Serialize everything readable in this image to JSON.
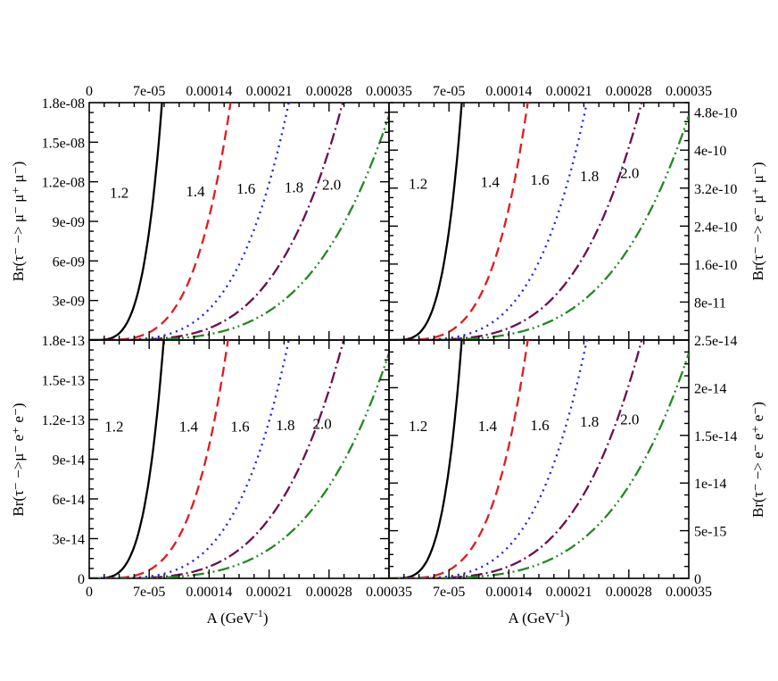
{
  "figure": {
    "xlabel": "A (GeV",
    "xlabel_sup": "-1",
    "xlabel_close": ")"
  },
  "chart_data": [
    {
      "type": "line",
      "panel": "top-left",
      "ylabel": "Br(τ⁻ −> μ⁻ μ⁺ μ⁻)",
      "xlim": [
        0,
        0.00035
      ],
      "ylim": [
        0,
        1.8e-08
      ],
      "x_ticks": [
        "0",
        "7e-05",
        "0.00014",
        "0.00021",
        "0.00028",
        "0.00035"
      ],
      "y_ticks": [
        "3e-09",
        "6e-09",
        "9e-09",
        "1.2e-08",
        "1.5e-08",
        "1.8e-08"
      ],
      "y_tick_values": [
        3e-09,
        6e-09,
        9e-09,
        1.2e-08,
        1.5e-08,
        1.8e-08
      ],
      "k_values": [
        8.5e-05,
        0.000165,
        0.000233,
        0.000296,
        0.000355
      ],
      "series": [
        {
          "name": "1.2",
          "color": "#000000",
          "style": "solid",
          "label_x": 3.5e-05,
          "label_y": 1.12e-08
        },
        {
          "name": "1.4",
          "color": "#e31a1c",
          "style": "dashed",
          "label_x": 0.000124,
          "label_y": 1.13e-08
        },
        {
          "name": "1.6",
          "color": "#1a1aff",
          "style": "dotted",
          "label_x": 0.000183,
          "label_y": 1.15e-08
        },
        {
          "name": "1.8",
          "color": "#6b0f4f",
          "style": "dashdot",
          "label_x": 0.000239,
          "label_y": 1.16e-08
        },
        {
          "name": "2.0",
          "color": "#1f8a1f",
          "style": "dashdotdot",
          "label_x": 0.000283,
          "label_y": 1.18e-08
        }
      ]
    },
    {
      "type": "line",
      "panel": "top-right",
      "ylabel": "Br(τ⁻ −> e⁻ μ⁺ μ⁻)",
      "xlim": [
        0,
        0.00035
      ],
      "ylim": [
        0,
        5e-10
      ],
      "x_ticks": [
        "0",
        "7e-05",
        "0.00014",
        "0.00021",
        "0.00028",
        "0.00035"
      ],
      "y_ticks": [
        "8e-11",
        "1.6e-10",
        "2.4e-10",
        "3.2e-10",
        "4e-10",
        "4.8e-10"
      ],
      "y_tick_values": [
        8e-11,
        1.6e-10,
        2.4e-10,
        3.2e-10,
        4e-10,
        4.8e-10
      ],
      "k_values": [
        8.5e-05,
        0.000162,
        0.000231,
        0.000295,
        0.000355
      ],
      "series": [
        {
          "name": "1.2",
          "color": "#000000",
          "style": "solid",
          "label_x": 3.4e-05,
          "label_y": 3.3e-10
        },
        {
          "name": "1.4",
          "color": "#e31a1c",
          "style": "dashed",
          "label_x": 0.000118,
          "label_y": 3.34e-10
        },
        {
          "name": "1.6",
          "color": "#1a1aff",
          "style": "dotted",
          "label_x": 0.000176,
          "label_y": 3.38e-10
        },
        {
          "name": "1.8",
          "color": "#6b0f4f",
          "style": "dashdot",
          "label_x": 0.000234,
          "label_y": 3.46e-10
        },
        {
          "name": "2.0",
          "color": "#1f8a1f",
          "style": "dashdotdot",
          "label_x": 0.000281,
          "label_y": 3.52e-10
        }
      ]
    },
    {
      "type": "line",
      "panel": "bottom-left",
      "ylabel": "Br(τ⁻ −>μ⁻ e⁺ e⁻)",
      "xlim": [
        0,
        0.00035
      ],
      "ylim": [
        0,
        1.8e-13
      ],
      "x_ticks": [
        "0",
        "7e-05",
        "0.00014",
        "0.00021",
        "0.00028",
        "0.00035"
      ],
      "y_ticks": [
        "0",
        "3e-14",
        "6e-14",
        "9e-14",
        "1.2e-13",
        "1.5e-13",
        "1.8e-13"
      ],
      "y_tick_values": [
        0,
        3e-14,
        6e-14,
        9e-14,
        1.2e-13,
        1.5e-13,
        1.8e-13
      ],
      "k_values": [
        8.7e-05,
        0.000162,
        0.000233,
        0.000297,
        0.000355
      ],
      "series": [
        {
          "name": "1.2",
          "color": "#000000",
          "style": "solid",
          "label_x": 2.9e-05,
          "label_y": 1.15e-13
        },
        {
          "name": "1.4",
          "color": "#e31a1c",
          "style": "dashed",
          "label_x": 0.000116,
          "label_y": 1.15e-13
        },
        {
          "name": "1.6",
          "color": "#1a1aff",
          "style": "dotted",
          "label_x": 0.000176,
          "label_y": 1.15e-13
        },
        {
          "name": "1.8",
          "color": "#6b0f4f",
          "style": "dashdot",
          "label_x": 0.000229,
          "label_y": 1.16e-13
        },
        {
          "name": "2.0",
          "color": "#1f8a1f",
          "style": "dashdotdot",
          "label_x": 0.000272,
          "label_y": 1.17e-13
        }
      ]
    },
    {
      "type": "line",
      "panel": "bottom-right",
      "ylabel": "Br(τ⁻ −> e⁻ e⁺ e⁻)",
      "xlim": [
        0,
        0.00035
      ],
      "ylim": [
        0,
        2.5e-14
      ],
      "x_ticks": [
        "0",
        "7e-05",
        "0.00014",
        "0.00021",
        "0.00028",
        "0.00035"
      ],
      "y_ticks": [
        "0",
        "5e-15",
        "1e-14",
        "1.5e-14",
        "2e-14",
        "2.5e-14"
      ],
      "y_tick_values": [
        0,
        5e-15,
        1e-14,
        1.5e-14,
        2e-14,
        2.5e-14
      ],
      "k_values": [
        8.5e-05,
        0.000162,
        0.000231,
        0.000295,
        0.000355
      ],
      "series": [
        {
          "name": "1.2",
          "color": "#000000",
          "style": "solid",
          "label_x": 3.4e-05,
          "label_y": 1.6e-14
        },
        {
          "name": "1.4",
          "color": "#e31a1c",
          "style": "dashed",
          "label_x": 0.000115,
          "label_y": 1.6e-14
        },
        {
          "name": "1.6",
          "color": "#1a1aff",
          "style": "dotted",
          "label_x": 0.000176,
          "label_y": 1.61e-14
        },
        {
          "name": "1.8",
          "color": "#6b0f4f",
          "style": "dashdot",
          "label_x": 0.000234,
          "label_y": 1.65e-14
        },
        {
          "name": "2.0",
          "color": "#1f8a1f",
          "style": "dashdotdot",
          "label_x": 0.000281,
          "label_y": 1.67e-14
        }
      ]
    }
  ]
}
